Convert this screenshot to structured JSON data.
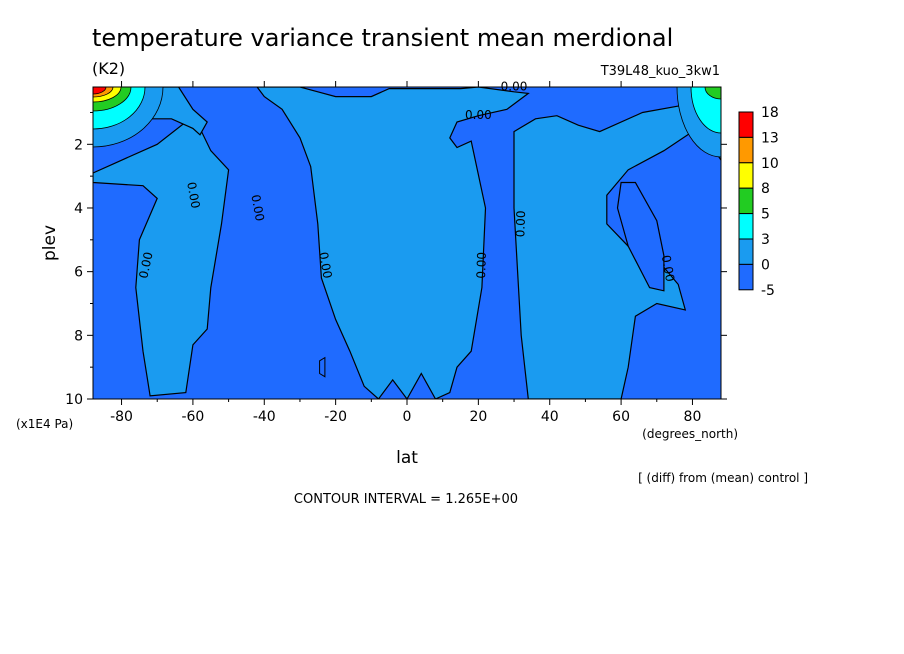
{
  "header": {
    "title": "temperature variance transient mean merdional",
    "units": "(K2)",
    "run_id": "T39L48_kuo_3kw1"
  },
  "footer": {
    "diff_note": "[ (diff) from (mean) control ]",
    "contour_interval": "CONTOUR INTERVAL = 1.265E+00"
  },
  "chart_data": {
    "type": "heatmap",
    "title": "temperature variance transient mean merdional",
    "xlabel": "lat",
    "x_units": "(degrees_north)",
    "ylabel": "plev",
    "y_units": "(x1E4 Pa)",
    "xlim": [
      -88,
      88
    ],
    "ylim": [
      10,
      0.2
    ],
    "x_ticks": [
      -80,
      -60,
      -40,
      -20,
      0,
      20,
      40,
      60,
      80
    ],
    "x_tick_labels": [
      "-80",
      "-60",
      "-40",
      "-20",
      "0",
      "20",
      "40",
      "60",
      "80"
    ],
    "y_ticks": [
      2,
      4,
      6,
      8,
      10
    ],
    "y_tick_labels": [
      "2",
      "4",
      "6",
      "8",
      "10"
    ],
    "contour_labels": [
      "0.00",
      "0.00",
      "0.00",
      "0.00",
      "0.00",
      "0.00",
      "0.00",
      "0.00",
      "0.00"
    ],
    "colorbar": {
      "levels": [
        "18",
        "13",
        "10",
        "8",
        "5",
        "3",
        "0",
        "-5"
      ],
      "colors": [
        "#ff0000",
        "#ff9900",
        "#ffff00",
        "#22cc22",
        "#00ffff",
        "#1a9bf0",
        "#1f6bff"
      ]
    }
  }
}
